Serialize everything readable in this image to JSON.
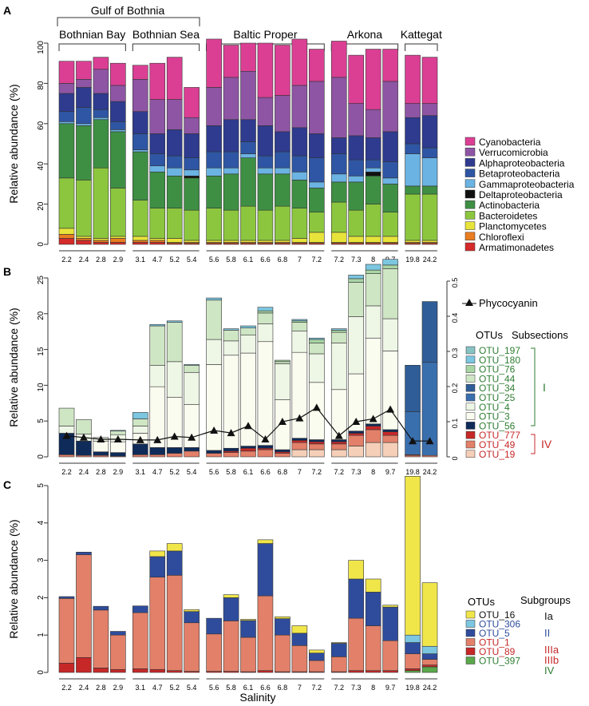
{
  "salinity": [
    "2.2",
    "2.4",
    "2.8",
    "2.9",
    "3.1",
    "4.7",
    "5.2",
    "5.4",
    "5.6",
    "5.8",
    "6.1",
    "6.6",
    "6.8",
    "7",
    "7.2",
    "7.2",
    "7.3",
    "8",
    "9.7",
    "19.8",
    "24.2"
  ],
  "regions": {
    "gulf_label": "Gulf of Bothnia",
    "items": [
      {
        "label": "Bothnian Bay",
        "start": 0,
        "end": 3
      },
      {
        "label": "Bothnian Sea",
        "start": 4,
        "end": 7
      },
      {
        "label": "Baltic Proper",
        "start": 8,
        "end": 14
      },
      {
        "label": "Arkona",
        "start": 15,
        "end": 18
      },
      {
        "label": "Kattegat",
        "start": 19,
        "end": 20
      }
    ]
  },
  "chart_data": [
    {
      "panel": "A",
      "type": "bar",
      "stacked": true,
      "ylabel": "Relative abundance (%)",
      "xlabel": "",
      "ylim": [
        0,
        100
      ],
      "yticks": [
        0,
        20,
        40,
        60,
        80,
        100
      ],
      "series": [
        {
          "name": "Armatimonadetes",
          "color": "#d42a2a",
          "values": [
            3,
            2,
            1,
            1,
            1,
            1,
            0.5,
            0.5,
            0.5,
            0.5,
            0.5,
            0.5,
            0.5,
            0.5,
            0.5,
            0.5,
            0.5,
            0.5,
            0.5,
            0.5,
            0.5
          ]
        },
        {
          "name": "Chloroflexi",
          "color": "#e97d20",
          "values": [
            2,
            1,
            1,
            2,
            1,
            1,
            0.5,
            0.5,
            0.5,
            0.5,
            0.5,
            0.5,
            0.5,
            0.5,
            0.5,
            0.5,
            0.5,
            0.5,
            0.5,
            0.5,
            0.5
          ]
        },
        {
          "name": "Planctomycetes",
          "color": "#e8e33a",
          "values": [
            3,
            1,
            1,
            1,
            2,
            1,
            2,
            1,
            1,
            1,
            1,
            1,
            1,
            2,
            5,
            5,
            3,
            3,
            3,
            1,
            1
          ]
        },
        {
          "name": "Bacteroidetes",
          "color": "#8cc63f",
          "values": [
            25,
            28,
            35,
            24,
            18,
            15,
            15,
            15,
            16,
            15,
            17,
            15,
            17,
            15,
            10,
            15,
            13,
            16,
            12,
            23,
            23
          ]
        },
        {
          "name": "Actinobacteria",
          "color": "#3e8f44",
          "values": [
            27,
            27,
            24,
            28,
            24,
            18,
            16,
            16,
            16,
            18,
            24,
            18,
            16,
            14,
            12,
            10,
            14,
            14,
            14,
            4,
            4
          ]
        },
        {
          "name": "Deltaproteobacteria",
          "color": "#111111",
          "values": [
            0,
            0,
            0,
            0,
            0,
            0,
            0,
            1,
            0,
            0,
            0,
            0,
            0,
            0,
            0,
            0,
            0,
            2,
            0,
            0,
            0
          ]
        },
        {
          "name": "Gammaproteobacteria",
          "color": "#6bb3e2",
          "values": [
            1,
            1,
            1,
            1,
            1,
            3,
            4,
            3,
            4,
            3,
            2,
            3,
            3,
            4,
            3,
            4,
            3,
            2,
            3,
            16,
            14
          ]
        },
        {
          "name": "Betaproteobacteria",
          "color": "#2f56a4",
          "values": [
            5,
            8,
            4,
            4,
            8,
            6,
            6,
            6,
            8,
            8,
            6,
            6,
            8,
            8,
            12,
            10,
            8,
            4,
            8,
            5,
            5
          ]
        },
        {
          "name": "Alphaproteobacteria",
          "color": "#2e3b8f",
          "values": [
            9,
            10,
            8,
            10,
            11,
            10,
            13,
            12,
            13,
            16,
            11,
            15,
            10,
            14,
            12,
            8,
            12,
            11,
            15,
            13,
            16
          ]
        },
        {
          "name": "Verrucomicrobia",
          "color": "#8e55a4",
          "values": [
            5,
            4,
            12,
            8,
            16,
            17,
            15,
            8,
            19,
            21,
            24,
            14,
            18,
            21,
            26,
            30,
            16,
            14,
            25,
            7,
            6
          ]
        },
        {
          "name": "Cyanobacteria",
          "color": "#db3f94",
          "values": [
            11,
            9,
            6,
            11,
            7,
            18,
            21,
            15,
            24,
            16,
            14,
            27,
            25,
            23,
            16,
            18,
            24,
            30,
            16,
            24,
            23
          ]
        }
      ],
      "legend": [
        "Cyanobacteria",
        "Verrucomicrobia",
        "Alphaproteobacteria",
        "Betaproteobacteria",
        "Gammaproteobacteria",
        "Deltaproteobacteria",
        "Actinobacteria",
        "Bacteroidetes",
        "Planctomycetes",
        "Chloroflexi",
        "Armatimonadetes"
      ]
    },
    {
      "panel": "B",
      "type": "bar",
      "stacked": true,
      "ylabel": "Relative abundance (%)",
      "xlabel": "",
      "ylim": [
        0,
        25
      ],
      "yticks": [
        0,
        5,
        10,
        15,
        20,
        25
      ],
      "y2lim": [
        0,
        0.5
      ],
      "y2ticks": [
        0,
        0.1,
        0.2,
        0.3,
        0.4,
        0.5
      ],
      "series": [
        {
          "name": "OTU_19",
          "color": "#f5cfb8",
          "values": [
            0,
            0,
            0,
            0,
            0,
            0,
            0,
            0,
            0,
            0,
            0,
            0,
            0,
            1,
            1,
            1,
            1.5,
            2,
            2,
            0,
            0
          ]
        },
        {
          "name": "OTU_49",
          "color": "#e2806a",
          "values": [
            0.3,
            0.2,
            0.2,
            0.1,
            0.3,
            0.3,
            0.5,
            0.8,
            0.5,
            0.6,
            0.8,
            1,
            0.5,
            1,
            0.8,
            0.8,
            1.5,
            1.8,
            1,
            0.2,
            0.2
          ]
        },
        {
          "name": "OTU_777",
          "color": "#c62828",
          "values": [
            0,
            0,
            0,
            0,
            0,
            0,
            0,
            0,
            0,
            0.2,
            0.4,
            0.2,
            0.2,
            0.3,
            0.3,
            0.3,
            0.3,
            0.5,
            0.5,
            0.1,
            0
          ]
        },
        {
          "name": "OTU_56",
          "color": "#0e2b5a",
          "values": [
            3,
            2,
            0.5,
            0.5,
            1.5,
            1,
            0.8,
            0.5,
            0.4,
            0.4,
            0.3,
            0.4,
            0.3,
            0.3,
            0.3,
            0.3,
            0.3,
            0.3,
            0.3,
            0,
            0
          ]
        },
        {
          "name": "OTU_3",
          "color": "#fbfcf0",
          "values": [
            0,
            0,
            1.5,
            1.5,
            1.5,
            8.5,
            7,
            6,
            12,
            13,
            13,
            14.5,
            7,
            12,
            8,
            7,
            8,
            12,
            11,
            0,
            0
          ]
        },
        {
          "name": "OTU_4",
          "color": "#eef6e6",
          "values": [
            1,
            1,
            0.5,
            1,
            1,
            3,
            5,
            4.5,
            3.5,
            2,
            2.5,
            2.5,
            5,
            3,
            4,
            6.5,
            8,
            4.5,
            4.5,
            0,
            0
          ]
        },
        {
          "name": "OTU_25",
          "color": "#3a6fae",
          "values": [
            0,
            0,
            0,
            0,
            0,
            0,
            0,
            0,
            0,
            0,
            0,
            0,
            0,
            0,
            0,
            0,
            0,
            0,
            0,
            6,
            13
          ]
        },
        {
          "name": "OTU_34",
          "color": "#2f5d97",
          "values": [
            0,
            0,
            0,
            0,
            0,
            0,
            0,
            0,
            0,
            0,
            0,
            0,
            0,
            0,
            0,
            0,
            0,
            0,
            0,
            6.5,
            8.5
          ]
        },
        {
          "name": "OTU_44",
          "color": "#cfe6c5",
          "values": [
            2.5,
            2,
            0,
            0.5,
            1,
            5.5,
            5.5,
            1,
            5.5,
            1.5,
            1,
            1.5,
            0.3,
            1.2,
            1.5,
            1.5,
            4.8,
            4.5,
            7,
            0,
            0
          ]
        },
        {
          "name": "OTU_76",
          "color": "#a8d5a4",
          "values": [
            0,
            0,
            0,
            0,
            0,
            0,
            0,
            0,
            0,
            0,
            0,
            0.3,
            0.2,
            0.2,
            0.5,
            0.3,
            0.5,
            0.5,
            0.5,
            0,
            0
          ]
        },
        {
          "name": "OTU_180",
          "color": "#7cc6e0",
          "values": [
            0,
            0,
            0,
            0.1,
            0.9,
            0.2,
            0.2,
            0.1,
            0.3,
            0.2,
            0.3,
            0.5,
            0,
            0.2,
            0.2,
            0.2,
            0.5,
            0.8,
            0.8,
            0,
            0
          ]
        },
        {
          "name": "OTU_197",
          "color": "#87c3c3",
          "values": [
            0,
            0,
            0,
            0,
            0,
            0,
            0,
            0,
            0,
            0,
            0,
            0,
            0,
            0,
            0,
            0,
            0,
            0,
            0,
            0,
            0
          ]
        }
      ],
      "line": {
        "name": "Phycocyanin",
        "values": [
          0.06,
          0.055,
          0.05,
          0.05,
          0.048,
          0.048,
          0.058,
          0.055,
          0.075,
          0.068,
          0.088,
          0.05,
          0.1,
          0.11,
          0.14,
          0.06,
          0.1,
          0.108,
          0.135,
          0.045,
          0.045
        ]
      },
      "legend_title_otus": "OTUs",
      "legend_title_subsections": "Subsections",
      "legend": [
        {
          "name": "OTU_197",
          "group": "I"
        },
        {
          "name": "OTU_180",
          "group": "I"
        },
        {
          "name": "OTU_76",
          "group": "I"
        },
        {
          "name": "OTU_44",
          "group": "I"
        },
        {
          "name": "OTU_34",
          "group": "I"
        },
        {
          "name": "OTU_25",
          "group": "I"
        },
        {
          "name": "OTU_4",
          "group": "I"
        },
        {
          "name": "OTU_3",
          "group": "I"
        },
        {
          "name": "OTU_56",
          "group": "I"
        },
        {
          "name": "OTU_777",
          "group": "IV"
        },
        {
          "name": "OTU_49",
          "group": "IV"
        },
        {
          "name": "OTU_19",
          "group": "IV"
        }
      ],
      "subsection_labels": {
        "I": "I",
        "IV": "IV"
      }
    },
    {
      "panel": "C",
      "type": "bar",
      "stacked": true,
      "ylabel": "Relative abundance (%)",
      "xlabel": "Salinity",
      "ylim": [
        0,
        5
      ],
      "yticks": [
        0,
        1,
        2,
        3,
        4,
        5
      ],
      "series": [
        {
          "name": "OTU_397",
          "color": "#5aa84b",
          "values": [
            0,
            0,
            0,
            0,
            0,
            0,
            0,
            0,
            0,
            0,
            0,
            0,
            0,
            0,
            0,
            0,
            0,
            0,
            0,
            0.05,
            0.15
          ]
        },
        {
          "name": "OTU_89",
          "color": "#c62828",
          "values": [
            0.25,
            0.4,
            0.12,
            0.08,
            0.1,
            0.08,
            0.05,
            0.03,
            0.03,
            0.03,
            0.02,
            0.05,
            0.02,
            0.02,
            0.02,
            0.02,
            0.05,
            0.05,
            0.05,
            0.05,
            0.05
          ]
        },
        {
          "name": "OTU_1",
          "color": "#e2806a",
          "values": [
            1.73,
            2.75,
            1.55,
            0.92,
            1.5,
            2.47,
            2.55,
            1.3,
            1,
            1.35,
            0.92,
            2,
            0.98,
            0.7,
            0.3,
            0.4,
            1.4,
            1.2,
            0.8,
            0.4,
            0.15
          ]
        },
        {
          "name": "OTU_5",
          "color": "#2f4c9c",
          "values": [
            0.05,
            0.07,
            0.1,
            0.1,
            0.18,
            0.55,
            0.65,
            0.3,
            0.42,
            0.62,
            0.45,
            1.4,
            0.44,
            0.33,
            0.2,
            0.36,
            1.05,
            0.9,
            0.9,
            0.3,
            0.15
          ]
        },
        {
          "name": "OTU_306",
          "color": "#7cc6e0",
          "values": [
            0,
            0,
            0,
            0,
            0,
            0,
            0,
            0,
            0,
            0,
            0,
            0,
            0,
            0,
            0,
            0,
            0,
            0,
            0,
            0.2,
            0.2
          ]
        },
        {
          "name": "OTU_16",
          "color": "#f0e64a",
          "values": [
            0,
            0,
            0,
            0,
            0,
            0.15,
            0.2,
            0.05,
            0,
            0.08,
            0.03,
            0.1,
            0.05,
            0.2,
            0.08,
            0.02,
            0.5,
            0.35,
            0.05,
            4.25,
            1.7
          ]
        }
      ],
      "legend_title_otus": "OTUs",
      "legend_title_subgroups": "Subgroups",
      "legend": [
        {
          "name": "OTU_16",
          "group": "Ia",
          "color_text": "#111111"
        },
        {
          "name": "OTU_306",
          "group": "II",
          "color_text": "#2f4c9c"
        },
        {
          "name": "OTU_5",
          "group": "II",
          "color_text": "#2f4c9c"
        },
        {
          "name": "OTU_1",
          "group": "IIIa",
          "color_text": "#c62828"
        },
        {
          "name": "OTU_89",
          "group": "IIIb",
          "color_text": "#c62828"
        },
        {
          "name": "OTU_397",
          "group": "IV",
          "color_text": "#2e7d32"
        }
      ],
      "subgroup_labels": [
        {
          "text": "Ia",
          "color": "#111111"
        },
        {
          "text": "II",
          "color": "#2f4c9c"
        },
        {
          "text": "IIIa",
          "color": "#c62828"
        },
        {
          "text": "IIIb",
          "color": "#c62828"
        },
        {
          "text": "IV",
          "color": "#2e7d32"
        }
      ]
    }
  ],
  "panel_letters": [
    "A",
    "B",
    "C"
  ],
  "legend_B_line_label": "Phycocyanin"
}
